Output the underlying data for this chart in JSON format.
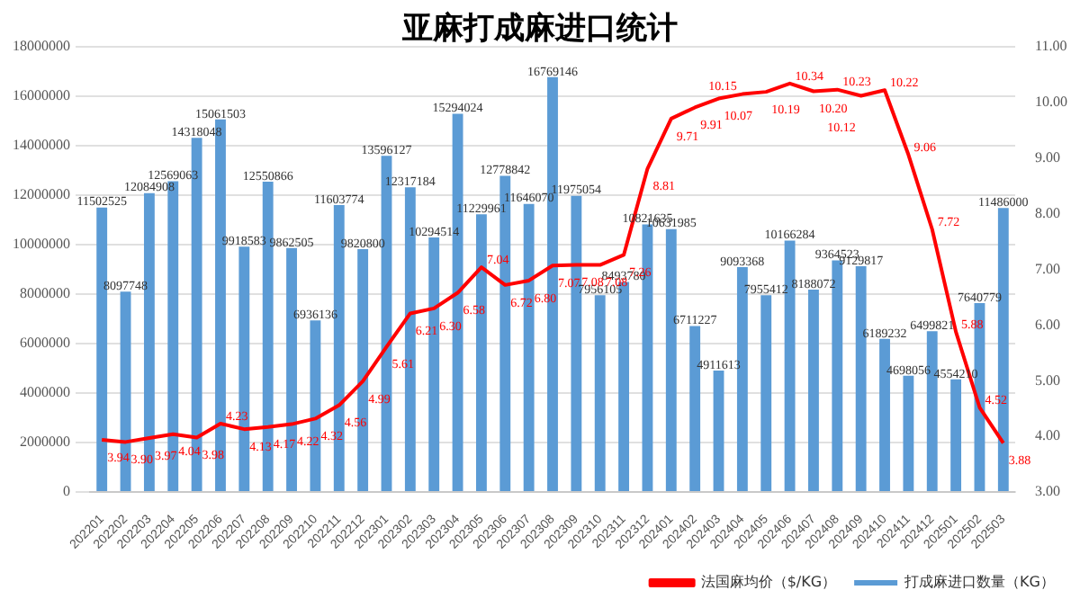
{
  "chart_data": {
    "type": "bar",
    "title": "亚麻打成麻进口统计",
    "categories": [
      "202201",
      "202202",
      "202203",
      "202204",
      "202205",
      "202206",
      "202207",
      "202208",
      "202209",
      "202210",
      "202211",
      "202212",
      "202301",
      "202302",
      "202303",
      "202304",
      "202305",
      "202306",
      "202307",
      "202308",
      "202309",
      "202310",
      "202311",
      "202312",
      "202401",
      "202402",
      "202403",
      "202404",
      "202405",
      "202406",
      "202407",
      "202408",
      "202409",
      "202410",
      "202411",
      "202412",
      "202501",
      "202502",
      "202503"
    ],
    "series": [
      {
        "name": "打成麻进口数量（KG）",
        "color": "#5b9bd5",
        "values": [
          11502525,
          8097748,
          12084908,
          12569063,
          14318048,
          15061503,
          9918583,
          12550866,
          9862505,
          6936136,
          11603774,
          9820800,
          13596127,
          12317184,
          10294514,
          15294024,
          11229961,
          12778842,
          11646070,
          16769146,
          11975054,
          7956105,
          8493780,
          10821635,
          10631985,
          6711227,
          4911613,
          9093368,
          7955412,
          10166284,
          8188072,
          9364523,
          9129817,
          6189232,
          4698056,
          6499821,
          4554210,
          7640779,
          11486000
        ],
        "value_labels": [
          "11502525",
          "8097748",
          "12084908",
          "12569063",
          "14318048",
          "15061503",
          "9918583",
          "12550866",
          "9862505",
          "6936136",
          "11603774",
          "9820800",
          "13596127",
          "12317184",
          "10294514",
          "15294024",
          "11229961",
          "12778842",
          "11646070",
          "16769146",
          "11975054",
          "7956105",
          "8493780",
          "10821635",
          "10631985",
          "6711227",
          "4911613",
          "9093368",
          "7955412",
          "10166284",
          "8188072",
          "9364523",
          "9129817",
          "6189232",
          "4698056",
          "6499821",
          "4554210",
          "7640779",
          "11486000"
        ]
      },
      {
        "name": "法国麻均价（$/KG）",
        "type": "line",
        "axis": "y2",
        "color": "#ff0000",
        "values": [
          3.94,
          3.9,
          3.97,
          4.04,
          3.98,
          4.23,
          4.13,
          4.17,
          4.22,
          4.32,
          4.56,
          4.99,
          5.61,
          6.21,
          6.3,
          6.58,
          7.04,
          6.72,
          6.8,
          7.07,
          7.08,
          7.08,
          7.26,
          8.81,
          9.71,
          9.91,
          10.07,
          10.15,
          10.19,
          10.34,
          10.2,
          10.23,
          10.12,
          10.22,
          9.06,
          7.72,
          5.88,
          4.52,
          3.88
        ],
        "value_labels": [
          "3.94",
          "3.90",
          "3.97",
          "4.04",
          "3.98",
          "4.23",
          "4.13",
          "4.17",
          "4.22",
          "4.32",
          "4.56",
          "4.99",
          "5.61",
          "6.21",
          "6.30",
          "6.58",
          "7.04",
          "6.72",
          "6.80",
          "7.07",
          "7.08",
          "7.08",
          "7.26",
          "8.81",
          "9.71",
          "9.91",
          "10.07",
          "10.15",
          "10.19",
          "10.34",
          "10.20",
          "10.23",
          "10.12",
          "10.22",
          "9.06",
          "7.72",
          "5.88",
          "4.52",
          "3.88"
        ]
      }
    ],
    "ylim": [
      0,
      18000000
    ],
    "yticks": [
      0,
      2000000,
      4000000,
      6000000,
      8000000,
      10000000,
      12000000,
      14000000,
      16000000,
      18000000
    ],
    "y2lim": [
      3,
      11
    ],
    "y2ticks": [
      {
        "value": 3,
        "label": "3.00"
      },
      {
        "value": 4,
        "label": "4.00"
      },
      {
        "value": 5,
        "label": "5.00"
      },
      {
        "value": 6,
        "label": "6.00"
      },
      {
        "value": 7,
        "label": "7.00"
      },
      {
        "value": 8,
        "label": "8.00"
      },
      {
        "value": 9,
        "label": "9.00"
      },
      {
        "value": 10,
        "label": "10.00"
      },
      {
        "value": 11,
        "label": "11.00"
      }
    ],
    "grid": "y",
    "legend": "bottom",
    "marker": "none"
  }
}
